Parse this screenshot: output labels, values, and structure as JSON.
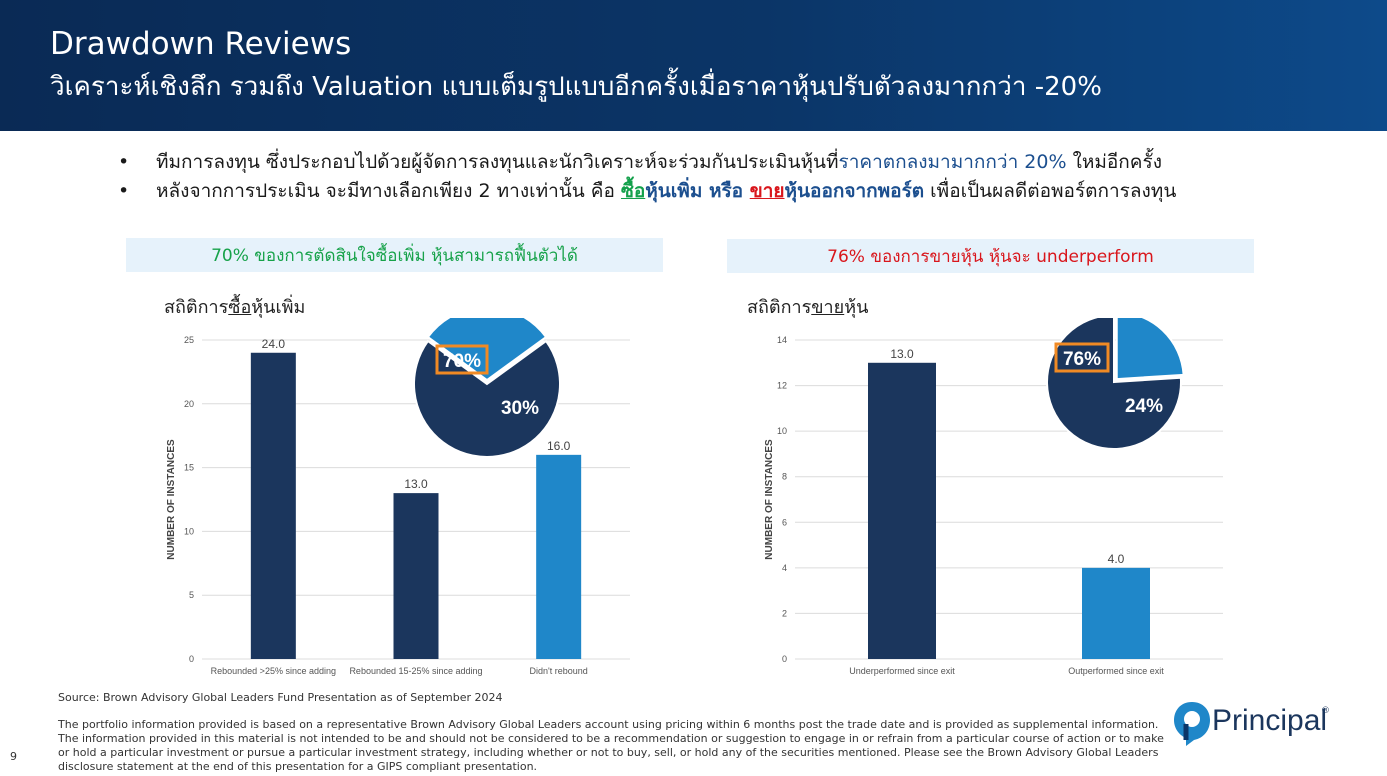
{
  "header": {
    "title": "Drawdown Reviews",
    "subtitle": "วิเคราะห์เชิงลึก รวมถึง Valuation แบบเต็มรูปแบบอีกครั้งเมื่อราคาหุ้นปรับตัวลงมากกว่า -20%"
  },
  "bullets": {
    "b1_a": "ทีมการลงทุน ซึ่งประกอบไปด้วยผู้จัดการลงทุนและนักวิเคราะห์จะร่วมกันประเมินหุ้นที่",
    "b1_b": "ราคาตกลงมามากกว่า 20%",
    "b1_c": " ใหม่อีกครั้ง",
    "b2_a": "หลังจากการประเมิน จะมีทางเลือกเพียง 2 ทางเท่านั้น คือ ",
    "b2_buy": "ซื้อ",
    "b2_b": "หุ้นเพิ่ม หรือ ",
    "b2_sell": "ขาย",
    "b2_c": "หุ้นออกจากพอร์ต",
    "b2_d": " เพื่อเป็นผลดีต่อพอร์ตการลงทุน"
  },
  "callouts": {
    "left": "70% ของการตัดสินใจซื้อเพิ่ม หุ้นสามารถฟื้นตัวได้",
    "right": "76% ของการขายหุ้น หุ้นจะ underperform"
  },
  "stats": {
    "buy_prefix": "สถิติการ",
    "buy_key": "ซื้อ",
    "buy_suffix": "หุ้นเพิ่ม",
    "sell_prefix": "สถิติการ",
    "sell_key": "ขาย",
    "sell_suffix": "หุ้น"
  },
  "colors": {
    "navy": "#1b365d",
    "blue": "#1f87c9",
    "orange": "#f08a24"
  },
  "chart_data": [
    {
      "type": "bar",
      "ylabel": "NUMBER OF INSTANCES",
      "categories": [
        "Rebounded >25% since adding",
        "Rebounded 15-25% since adding",
        "Didn't rebound"
      ],
      "values": [
        24.0,
        13.0,
        16.0
      ],
      "labels": [
        "24.0",
        "13.0",
        "16.0"
      ],
      "ylim": [
        0,
        25
      ],
      "yticks": [
        0,
        5,
        10,
        15,
        20,
        25
      ],
      "bar_colors": [
        "#1b365d",
        "#1b365d",
        "#1f87c9"
      ],
      "grid": true,
      "pie": {
        "values": [
          70,
          30
        ],
        "labels": [
          "70%",
          "30%"
        ],
        "highlight": "70%"
      }
    },
    {
      "type": "bar",
      "ylabel": "NUMBER OF INSTANCES",
      "categories": [
        "Underperformed since exit",
        "Outperformed since exit"
      ],
      "values": [
        13.0,
        4.0
      ],
      "labels": [
        "13.0",
        "4.0"
      ],
      "ylim": [
        0,
        14
      ],
      "yticks": [
        0,
        2,
        4,
        6,
        8,
        10,
        12,
        14
      ],
      "bar_colors": [
        "#1b365d",
        "#1f87c9"
      ],
      "grid": true,
      "pie": {
        "values": [
          76,
          24
        ],
        "labels": [
          "76%",
          "24%"
        ],
        "highlight": "76%"
      }
    }
  ],
  "footer": {
    "source": "Source: Brown Advisory Global Leaders Fund Presentation as of September 2024",
    "disclaimer": "The portfolio information provided is based on a representative Brown Advisory Global Leaders account using pricing within 6 months post the trade date and is provided as supplemental information. The information provided in this material is not intended to be and should not be considered to be a recommendation or suggestion to engage in or refrain from a particular course of action or to make or hold a particular investment or pursue a particular investment strategy, including whether or not to buy, sell, or hold any of the securities mentioned. Please see the Brown Advisory Global Leaders disclosure statement at the end of this presentation for a GIPS compliant presentation.",
    "page_number": "9",
    "logo_text": "Principal",
    "logo_mark": "®"
  }
}
